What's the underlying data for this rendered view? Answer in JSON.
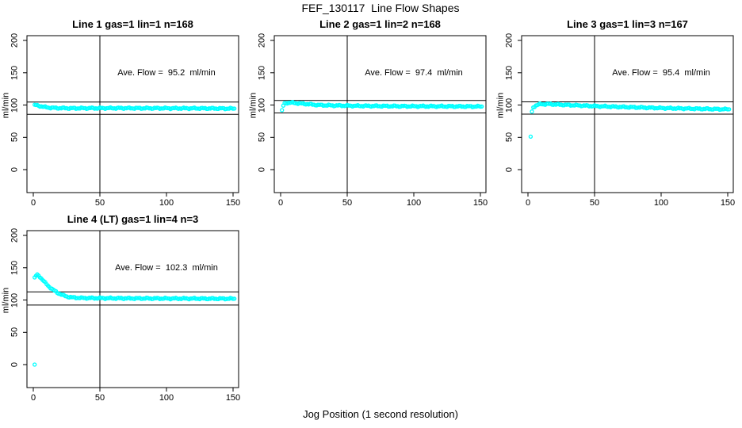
{
  "title": "FEF_130117  Line Flow Shapes",
  "xlabel": "Jog Position (1 second resolution)",
  "colors": {
    "points": "#00FFFF",
    "axis": "#000000",
    "background": "#FFFFFF"
  },
  "chart_data": [
    {
      "type": "scatter",
      "title": "Line 1 gas=1 lin=1 n=168",
      "ave_flow_text": "Ave. Flow =  95.2  ml/min",
      "ave_flow_ml_min": 95.2,
      "n_points_label": 168,
      "ylabel": "ml/min",
      "x_ticks": [
        0,
        50,
        100,
        150
      ],
      "y_ticks": [
        0,
        50,
        100,
        150,
        200
      ],
      "xlim": [
        -5,
        154
      ],
      "ylim": [
        -37,
        207
      ],
      "vline_x": 50,
      "ref_lines": [
        104.7,
        85.7
      ],
      "x_step": 1,
      "points": [
        [
          1,
          100.5
        ],
        [
          2,
          100
        ],
        [
          3,
          99.5
        ],
        [
          5,
          98.5
        ],
        [
          8,
          97
        ],
        [
          12,
          96
        ],
        [
          18,
          95.3
        ],
        [
          30,
          95
        ],
        [
          60,
          95.2
        ],
        [
          100,
          95
        ],
        [
          130,
          94.8
        ],
        [
          151,
          94.5
        ]
      ],
      "outliers": []
    },
    {
      "type": "scatter",
      "title": "Line 2 gas=1 lin=2 n=168",
      "ave_flow_text": "Ave. Flow =  97.4  ml/min",
      "ave_flow_ml_min": 97.4,
      "n_points_label": 168,
      "ylabel": "ml/min",
      "x_ticks": [
        0,
        50,
        100,
        150
      ],
      "y_ticks": [
        0,
        50,
        100,
        150,
        200
      ],
      "xlim": [
        -5,
        154
      ],
      "ylim": [
        -37,
        207
      ],
      "vline_x": 50,
      "ref_lines": [
        107.1,
        87.7
      ],
      "x_step": 1,
      "points": [
        [
          1,
          92
        ],
        [
          2,
          99
        ],
        [
          3,
          102.5
        ],
        [
          5,
          103.5
        ],
        [
          9,
          103.5
        ],
        [
          14,
          102.5
        ],
        [
          20,
          101.5
        ],
        [
          28,
          100
        ],
        [
          40,
          99.3
        ],
        [
          60,
          98.7
        ],
        [
          90,
          98.2
        ],
        [
          120,
          98
        ],
        [
          151,
          97.7
        ]
      ],
      "outliers": []
    },
    {
      "type": "scatter",
      "title": "Line 3 gas=1 lin=3 n=167",
      "ave_flow_text": "Ave. Flow =  95.4  ml/min",
      "ave_flow_ml_min": 95.4,
      "n_points_label": 167,
      "ylabel": "ml/min",
      "x_ticks": [
        0,
        50,
        100,
        150
      ],
      "y_ticks": [
        0,
        50,
        100,
        150,
        200
      ],
      "xlim": [
        -5,
        154
      ],
      "ylim": [
        -37,
        207
      ],
      "vline_x": 50,
      "ref_lines": [
        104.9,
        85.9
      ],
      "x_step": 1,
      "points": [
        [
          2,
          51
        ],
        [
          3,
          90
        ],
        [
          4,
          96.5
        ],
        [
          6,
          99.5
        ],
        [
          9,
          101.3
        ],
        [
          15,
          101.5
        ],
        [
          25,
          100.5
        ],
        [
          40,
          99.2
        ],
        [
          55,
          98
        ],
        [
          75,
          96.8
        ],
        [
          100,
          95.3
        ],
        [
          125,
          94.3
        ],
        [
          151,
          93.4
        ]
      ],
      "outliers": []
    },
    {
      "type": "scatter",
      "title": "Line 4 (LT) gas=1 lin=4 n=3",
      "ave_flow_text": "Ave. Flow =  102.3  ml/min",
      "ave_flow_ml_min": 102.3,
      "n_points_label": 3,
      "ylabel": "ml/min",
      "x_ticks": [
        0,
        50,
        100,
        150
      ],
      "y_ticks": [
        0,
        50,
        100,
        150,
        200
      ],
      "xlim": [
        -5,
        154
      ],
      "ylim": [
        -37,
        207
      ],
      "vline_x": 50,
      "ref_lines": [
        112.5,
        92.1
      ],
      "x_step": 1,
      "points": [
        [
          1,
          135
        ],
        [
          2,
          137.5
        ],
        [
          3,
          139
        ],
        [
          4,
          138
        ],
        [
          5,
          136
        ],
        [
          7,
          131
        ],
        [
          9,
          126.5
        ],
        [
          12,
          120.5
        ],
        [
          15,
          115.5
        ],
        [
          18,
          111.5
        ],
        [
          22,
          107.5
        ],
        [
          26,
          105
        ],
        [
          30,
          103.8
        ],
        [
          36,
          103.2
        ],
        [
          45,
          102.9
        ],
        [
          60,
          102.7
        ],
        [
          90,
          102.4
        ],
        [
          120,
          102.2
        ],
        [
          151,
          102
        ]
      ],
      "outliers": [
        [
          1,
          0
        ]
      ]
    }
  ]
}
